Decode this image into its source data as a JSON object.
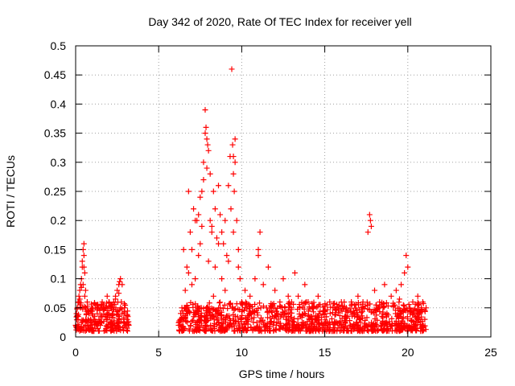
{
  "chart_data": {
    "type": "scatter",
    "title": "Day 342 of 2020, Rate Of TEC Index for receiver yell",
    "xlabel": "GPS time / hours",
    "ylabel": "ROTI / TECUs",
    "xlim": [
      0,
      25
    ],
    "ylim": [
      0,
      0.5
    ],
    "xticks": [
      0,
      5,
      10,
      15,
      20,
      25
    ],
    "xtick_labels": [
      "0",
      "5",
      "10",
      "15",
      "20",
      "25"
    ],
    "yticks": [
      0,
      0.05,
      0.1,
      0.15,
      0.2,
      0.25,
      0.3,
      0.35,
      0.4,
      0.45,
      0.5
    ],
    "ytick_labels": [
      "0",
      "0.05",
      "0.1",
      "0.15",
      "0.2",
      "0.25",
      "0.3",
      "0.35",
      "0.4",
      "0.45",
      "0.5"
    ],
    "grid": true,
    "marker": "+",
    "color": "#ff0000",
    "series": [
      {
        "x": [
          0.0,
          0.05,
          0.1,
          0.15,
          0.2,
          0.25,
          0.3,
          0.35,
          0.4,
          0.45,
          0.5,
          0.55,
          0.6,
          0.65,
          0.7,
          0.75,
          0.8,
          0.9,
          1.0,
          1.1,
          1.2,
          1.3,
          1.4,
          1.5,
          1.6,
          1.7,
          1.8,
          1.9,
          2.0,
          2.1,
          2.2,
          2.3,
          2.4,
          2.5,
          2.6,
          2.7,
          2.8,
          2.9,
          3.0,
          3.1,
          3.2,
          0.2,
          0.3,
          0.4,
          0.45,
          0.5,
          0.55,
          0.6,
          0.7,
          0.35,
          0.5,
          0.15,
          0.25,
          1.2,
          1.5,
          1.8,
          2.0,
          2.2,
          2.4,
          2.6,
          2.7,
          2.8,
          2.65,
          2.75,
          1.9,
          2.1,
          0.1,
          0.6,
          1.0,
          1.3,
          3.1
        ],
        "y": [
          0.02,
          0.04,
          0.05,
          0.03,
          0.06,
          0.08,
          0.05,
          0.1,
          0.12,
          0.09,
          0.16,
          0.07,
          0.05,
          0.04,
          0.06,
          0.03,
          0.04,
          0.03,
          0.04,
          0.03,
          0.05,
          0.04,
          0.03,
          0.05,
          0.06,
          0.04,
          0.05,
          0.07,
          0.06,
          0.05,
          0.04,
          0.06,
          0.07,
          0.08,
          0.09,
          0.05,
          0.04,
          0.03,
          0.02,
          0.03,
          0.02,
          0.07,
          0.09,
          0.13,
          0.15,
          0.14,
          0.11,
          0.08,
          0.06,
          0.085,
          0.12,
          0.035,
          0.065,
          0.055,
          0.025,
          0.035,
          0.045,
          0.055,
          0.065,
          0.075,
          0.1,
          0.09,
          0.095,
          0.06,
          0.045,
          0.025,
          0.015,
          0.02,
          0.015,
          0.02,
          0.015
        ]
      },
      {
        "x": [
          6.2,
          6.3,
          6.4,
          6.5,
          6.6,
          6.7,
          6.8,
          6.9,
          7.0,
          7.1,
          7.2,
          7.3,
          7.4,
          7.5,
          7.6,
          7.7,
          7.8,
          7.85,
          7.9,
          7.95,
          8.0,
          8.1,
          8.2,
          8.3,
          8.4,
          8.5,
          8.6,
          8.7,
          8.8,
          8.9,
          9.0,
          9.1,
          9.2,
          9.3,
          9.35,
          9.4,
          9.45,
          9.5,
          9.55,
          9.6,
          9.7,
          9.8,
          9.9,
          10.0,
          10.2,
          10.5,
          10.8,
          11.0,
          11.1,
          11.3,
          11.6,
          12.0,
          12.3,
          12.5,
          12.8,
          13.0,
          13.2,
          13.5,
          13.8,
          14.0,
          14.3,
          14.6,
          15.0,
          15.3,
          15.6,
          16.0,
          16.3,
          16.6,
          17.0,
          17.3,
          17.6,
          17.7,
          17.75,
          17.8,
          18.0,
          18.3,
          18.6,
          19.0,
          19.3,
          19.6,
          19.8,
          19.9,
          20.0,
          20.3,
          20.6,
          20.9,
          21.1,
          6.5,
          6.8,
          7.0,
          7.2,
          7.5,
          7.7,
          7.8,
          8.0,
          8.2,
          8.4,
          8.6,
          8.8,
          9.0,
          9.2,
          9.5,
          9.8,
          7.9,
          8.1,
          7.6,
          7.4,
          9.6,
          9.5,
          8.3,
          8.7,
          11.0,
          11.5,
          12.2,
          13.4,
          16.4,
          16.8,
          17.2,
          18.5,
          19.2,
          19.5,
          20.2,
          20.5
        ],
        "y": [
          0.02,
          0.03,
          0.05,
          0.04,
          0.08,
          0.12,
          0.25,
          0.18,
          0.15,
          0.22,
          0.1,
          0.2,
          0.14,
          0.16,
          0.25,
          0.3,
          0.39,
          0.36,
          0.34,
          0.33,
          0.32,
          0.2,
          0.18,
          0.25,
          0.22,
          0.17,
          0.26,
          0.21,
          0.18,
          0.16,
          0.2,
          0.14,
          0.26,
          0.31,
          0.22,
          0.46,
          0.33,
          0.31,
          0.25,
          0.34,
          0.2,
          0.15,
          0.1,
          0.06,
          0.08,
          0.07,
          0.1,
          0.14,
          0.18,
          0.09,
          0.12,
          0.08,
          0.06,
          0.1,
          0.07,
          0.06,
          0.11,
          0.05,
          0.09,
          0.06,
          0.05,
          0.07,
          0.04,
          0.06,
          0.05,
          0.06,
          0.05,
          0.06,
          0.07,
          0.06,
          0.18,
          0.21,
          0.2,
          0.19,
          0.08,
          0.06,
          0.09,
          0.07,
          0.08,
          0.09,
          0.11,
          0.14,
          0.12,
          0.06,
          0.07,
          0.06,
          0.05,
          0.15,
          0.11,
          0.09,
          0.2,
          0.24,
          0.27,
          0.35,
          0.13,
          0.19,
          0.12,
          0.16,
          0.1,
          0.08,
          0.13,
          0.18,
          0.12,
          0.29,
          0.28,
          0.19,
          0.21,
          0.3,
          0.28,
          0.07,
          0.05,
          0.15,
          0.05,
          0.04,
          0.07,
          0.045,
          0.035,
          0.05,
          0.04,
          0.055,
          0.065,
          0.045,
          0.035
        ]
      }
    ],
    "band": {
      "segments": [
        [
          0,
          3.2
        ],
        [
          6.2,
          21.1
        ]
      ],
      "ymin": 0.01,
      "ymax": 0.06
    }
  }
}
